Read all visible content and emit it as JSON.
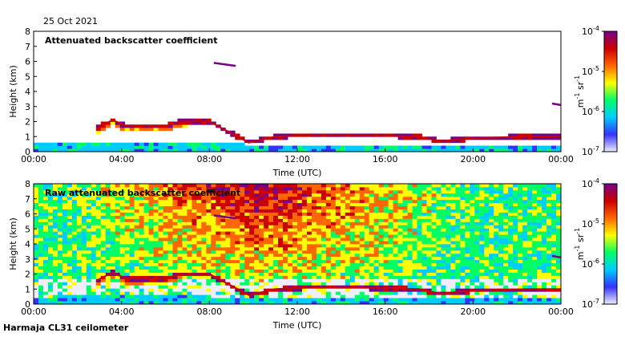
{
  "date": "25 Oct 2021",
  "site": "Harmaja CL31 ceilometer",
  "colors": {
    "scale": [
      "#eeeeff",
      "#3333ff",
      "#00ccff",
      "#00ff66",
      "#ffff00",
      "#ff6600",
      "#cc0000",
      "#770088"
    ]
  },
  "chart_data": [
    {
      "type": "heatmap",
      "title": "Attenuated backscatter coefficient",
      "xlabel": "Time (UTC)",
      "ylabel": "Height (km)",
      "x_ticks": [
        "00:00",
        "04:00",
        "08:00",
        "12:00",
        "16:00",
        "20:00",
        "00:00"
      ],
      "y_ticks": [
        "0",
        "1",
        "2",
        "3",
        "4",
        "5",
        "6",
        "7",
        "8"
      ],
      "xlim_hours": [
        0,
        24
      ],
      "ylim_km": [
        0,
        8
      ],
      "colorbar": {
        "unit_base": "m",
        "unit_base_exp": "-1",
        "unit_sr": "sr",
        "unit_sr_exp": "-1",
        "tick_base": "10",
        "ticks": [
          "-7",
          "-6",
          "-5",
          "-4"
        ],
        "scale": "log",
        "range": [
          1e-07,
          0.0001
        ]
      },
      "features": {
        "boundary_layer_top_km": [
          [
            0,
            0.5
          ],
          [
            3,
            0.6
          ],
          [
            9.5,
            0.5
          ],
          [
            24,
            0.5
          ]
        ],
        "cloud_base_km": [
          [
            2.9,
            1.6
          ],
          [
            3.6,
            2.1
          ],
          [
            4.2,
            1.7
          ],
          [
            6.0,
            1.7
          ],
          [
            6.7,
            2.0
          ],
          [
            8.0,
            2.0
          ],
          [
            9.8,
            0.6
          ],
          [
            11,
            1.0
          ],
          [
            12.5,
            1.1
          ],
          [
            15,
            1.1
          ],
          [
            17.5,
            1.0
          ],
          [
            18.5,
            0.7
          ],
          [
            20,
            0.9
          ],
          [
            22.5,
            1.0
          ],
          [
            24,
            1.0
          ]
        ],
        "high_cloud_km": [
          [
            8.2,
            5.9
          ],
          [
            9.2,
            5.7
          ]
        ],
        "residual_layer_km": [
          [
            23.6,
            3.2
          ],
          [
            24,
            3.1
          ]
        ]
      },
      "masked": true
    },
    {
      "type": "heatmap",
      "title": "Raw attenuated backscatter coefficient",
      "xlabel": "Time (UTC)",
      "ylabel": "Height (km)",
      "x_ticks": [
        "00:00",
        "04:00",
        "08:00",
        "12:00",
        "16:00",
        "20:00",
        "00:00"
      ],
      "y_ticks": [
        "0",
        "1",
        "2",
        "3",
        "4",
        "5",
        "6",
        "7",
        "8"
      ],
      "xlim_hours": [
        0,
        24
      ],
      "ylim_km": [
        0,
        8
      ],
      "colorbar": {
        "unit_base": "m",
        "unit_base_exp": "-1",
        "unit_sr": "sr",
        "unit_sr_exp": "-1",
        "tick_base": "10",
        "ticks": [
          "-7",
          "-6",
          "-5",
          "-4"
        ],
        "scale": "log",
        "range": [
          1e-07,
          0.0001
        ]
      },
      "masked": false
    }
  ]
}
